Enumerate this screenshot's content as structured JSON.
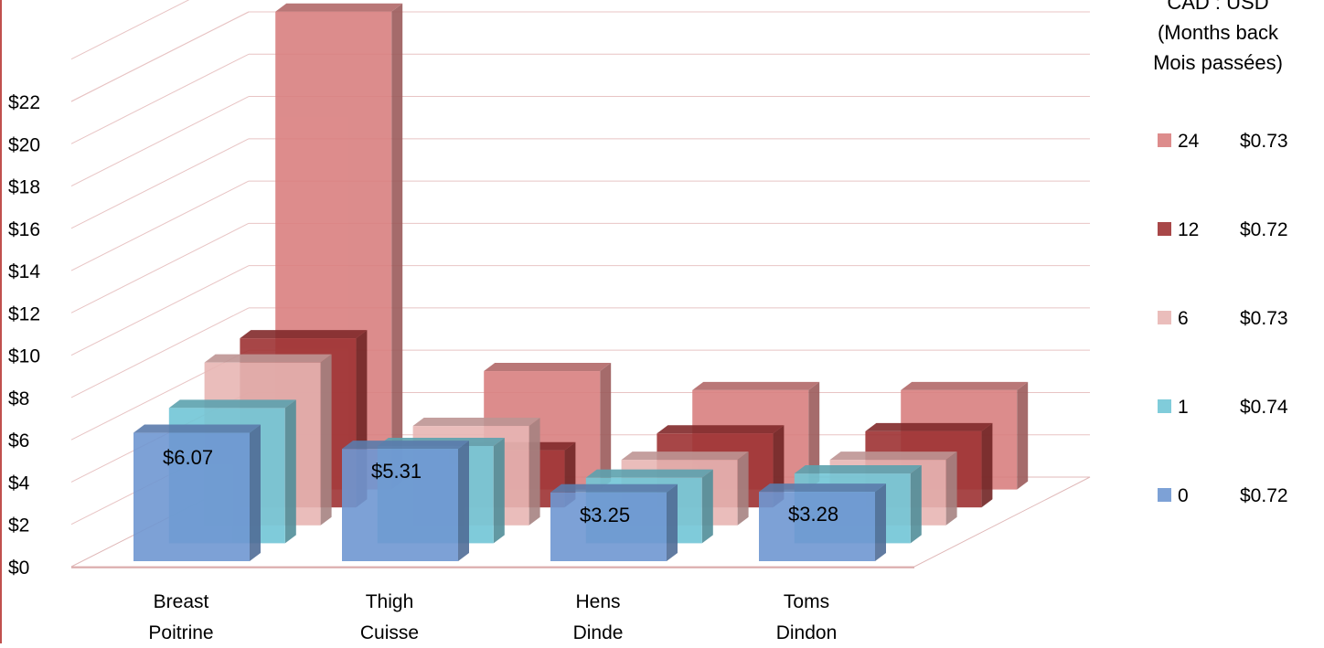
{
  "chart_data": {
    "type": "bar",
    "subtype": "3d-clustered-column",
    "categories": [
      [
        "Breast",
        "Poitrine"
      ],
      [
        "Thigh",
        "Cuisse"
      ],
      [
        "Hens",
        "Dinde"
      ],
      [
        "Toms",
        "Dindon"
      ]
    ],
    "y_ticks": [
      "$0",
      "$2",
      "$4",
      "$6",
      "$8",
      "$10",
      "$12",
      "$14",
      "$16",
      "$18",
      "$20",
      "$22"
    ],
    "ylim": [
      0,
      22
    ],
    "grid": true,
    "legend": {
      "placement": "right",
      "title_lines": [
        "CAD : USD",
        "(Months back",
        "Mois passées)"
      ],
      "entries": [
        {
          "name": "24",
          "rate": "$0.73",
          "color": "#d98080"
        },
        {
          "name": "12",
          "rate": "$0.72",
          "color": "#9e3334"
        },
        {
          "name": "6",
          "rate": "$0.73",
          "color": "#e8b6b4"
        },
        {
          "name": "1",
          "rate": "$0.74",
          "color": "#72c6d6"
        },
        {
          "name": "0",
          "rate": "$0.72",
          "color": "#6f97d2"
        }
      ]
    },
    "series": [
      {
        "name": "24",
        "values": [
          22.6,
          5.6,
          4.7,
          4.7
        ]
      },
      {
        "name": "12",
        "values": [
          8.0,
          2.7,
          3.5,
          3.6
        ]
      },
      {
        "name": "6",
        "values": [
          7.7,
          4.7,
          3.1,
          3.1
        ]
      },
      {
        "name": "1",
        "values": [
          6.4,
          4.6,
          3.1,
          3.3
        ]
      },
      {
        "name": "0",
        "values": [
          6.07,
          5.31,
          3.25,
          3.28
        ]
      }
    ],
    "data_labels": [
      "$6.07",
      "$5.31",
      "$3.25",
      "$3.28"
    ]
  }
}
